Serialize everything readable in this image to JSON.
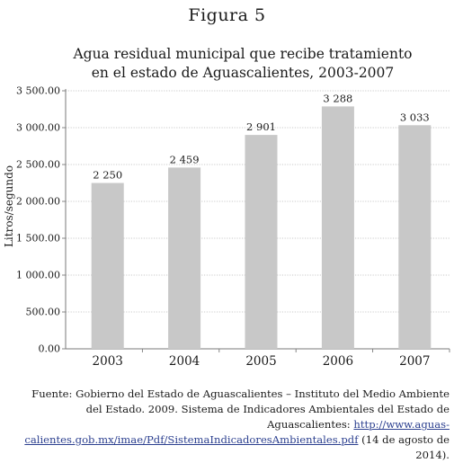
{
  "figure_label": "Figura 5",
  "chart_data": {
    "type": "bar",
    "title_line1": "Agua residual municipal que recibe tratamiento",
    "title_line2": "en el estado de Aguascalientes, 2003-2007",
    "categories": [
      "2003",
      "2004",
      "2005",
      "2006",
      "2007"
    ],
    "values": [
      2250,
      2459,
      2901,
      3288,
      3033
    ],
    "value_labels": [
      "2 250",
      "2 459",
      "2 901",
      "3 288",
      "3 033"
    ],
    "ylabel": "Litros/segundo",
    "xlabel": "",
    "ylim": [
      0,
      3500
    ],
    "yticks": [
      0,
      500,
      1000,
      1500,
      2000,
      2500,
      3000,
      3500
    ],
    "ytick_labels": [
      "0.00",
      "500.00",
      "1 000.00",
      "1 500.00",
      "2 000.00",
      "2 500.00",
      "3 000.00",
      "3 500.00"
    ],
    "grid": true,
    "bar_color": "#c8c8c8",
    "grid_color": "#b8b8b8",
    "axis_color": "#7a7a7a"
  },
  "source": {
    "prefix": "Fuente: Gobierno del Estado de Aguascalientes – Instituto del Medio Ambiente del Estado. 2009. Sistema de Indicadores Ambientales del Estado de Aguascalientes: ",
    "link": "http://www.aguas-calientes.gob.mx/imae/Pdf/SistemaIndicadoresAmbientales.pdf",
    "suffix": " (14 de agosto de 2014)."
  }
}
